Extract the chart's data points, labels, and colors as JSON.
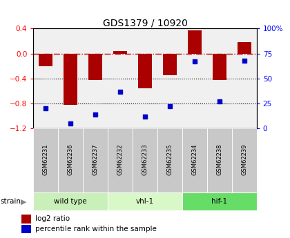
{
  "title": "GDS1379 / 10920",
  "samples": [
    "GSM62231",
    "GSM62236",
    "GSM62237",
    "GSM62232",
    "GSM62233",
    "GSM62235",
    "GSM62234",
    "GSM62238",
    "GSM62239"
  ],
  "log2_ratio": [
    -0.2,
    -0.82,
    -0.42,
    0.04,
    -0.56,
    -0.35,
    0.37,
    -0.42,
    0.18
  ],
  "percentile_rank": [
    20,
    5,
    14,
    37,
    12,
    22,
    67,
    27,
    68
  ],
  "groups": [
    {
      "label": "wild type",
      "start": 0,
      "end": 3,
      "color": "#c8f0b8"
    },
    {
      "label": "vhl-1",
      "start": 3,
      "end": 6,
      "color": "#d8f8c8"
    },
    {
      "label": "hif-1",
      "start": 6,
      "end": 9,
      "color": "#66dd66"
    }
  ],
  "ylim_left": [
    -1.2,
    0.4
  ],
  "ylim_right": [
    0,
    100
  ],
  "bar_color": "#aa0000",
  "scatter_color": "#0000cc",
  "hline_color": "#cc0000",
  "dot_color": "#000000",
  "right_ticks": [
    0,
    25,
    50,
    75,
    100
  ],
  "right_tick_labels": [
    "0",
    "25",
    "50",
    "75",
    "100%"
  ],
  "left_ticks": [
    -1.2,
    -0.8,
    -0.4,
    0.0,
    0.4
  ],
  "bar_width": 0.55,
  "sample_box_color": "#c8c8c8",
  "plot_bg": "#f0f0f0"
}
